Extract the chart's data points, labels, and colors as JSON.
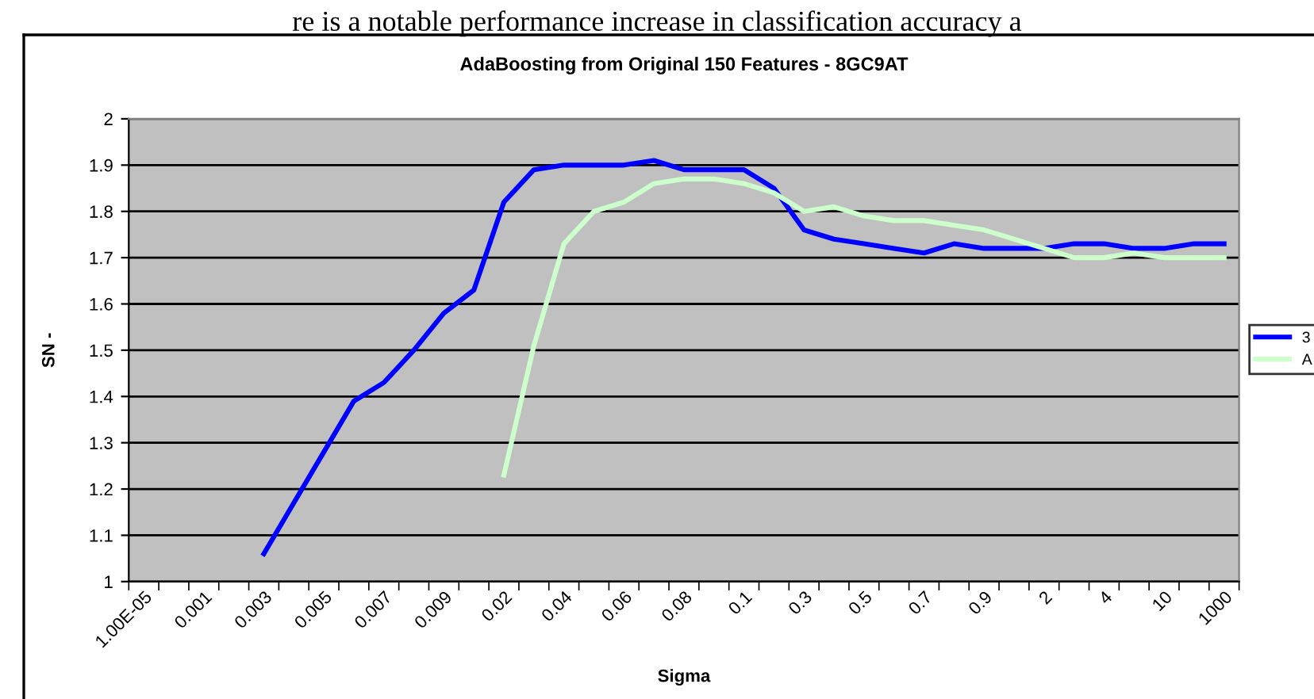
{
  "chart_data": {
    "type": "line",
    "title": "AdaBoosting from Original 150 Features - 8GC9AT",
    "xlabel": "Sigma",
    "ylabel": "SN -",
    "annotations": [
      "re is a notable performance increase in classification accuracy a"
    ],
    "categories": [
      "1.00E-05",
      null,
      "0.001",
      null,
      "0.003",
      null,
      "0.005",
      null,
      "0.007",
      null,
      "0.009",
      null,
      "0.02",
      null,
      "0.04",
      null,
      "0.06",
      null,
      "0.08",
      null,
      "0.1",
      null,
      "0.3",
      null,
      "0.5",
      null,
      "0.7",
      null,
      "0.9",
      null,
      "2",
      null,
      "4",
      null,
      "10",
      null,
      "1000"
    ],
    "series": [
      {
        "name": "3",
        "color": "#0000ff",
        "values": [
          null,
          null,
          null,
          null,
          1.06,
          1.17,
          1.28,
          1.39,
          1.43,
          1.5,
          1.58,
          1.63,
          1.82,
          1.89,
          1.9,
          1.9,
          1.9,
          1.91,
          1.89,
          1.89,
          1.89,
          1.85,
          1.76,
          1.74,
          1.73,
          1.72,
          1.71,
          1.73,
          1.72,
          1.72,
          1.72,
          1.73,
          1.73,
          1.72,
          1.72,
          1.73,
          1.73
        ]
      },
      {
        "name": "A",
        "color": "#ccffcc",
        "values": [
          null,
          null,
          null,
          null,
          null,
          null,
          null,
          null,
          null,
          null,
          null,
          null,
          1.23,
          1.51,
          1.73,
          1.8,
          1.82,
          1.86,
          1.87,
          1.87,
          1.86,
          1.84,
          1.8,
          1.81,
          1.79,
          1.78,
          1.78,
          1.77,
          1.76,
          1.74,
          1.72,
          1.7,
          1.7,
          1.71,
          1.7,
          1.7,
          1.7
        ]
      }
    ],
    "ylim": [
      1,
      2
    ],
    "yticks": [
      1,
      1.1,
      1.2,
      1.3,
      1.4,
      1.5,
      1.6,
      1.7,
      1.8,
      1.9,
      2
    ],
    "grid": "y",
    "legend": "right",
    "marker": "none",
    "line_style": "solid"
  }
}
